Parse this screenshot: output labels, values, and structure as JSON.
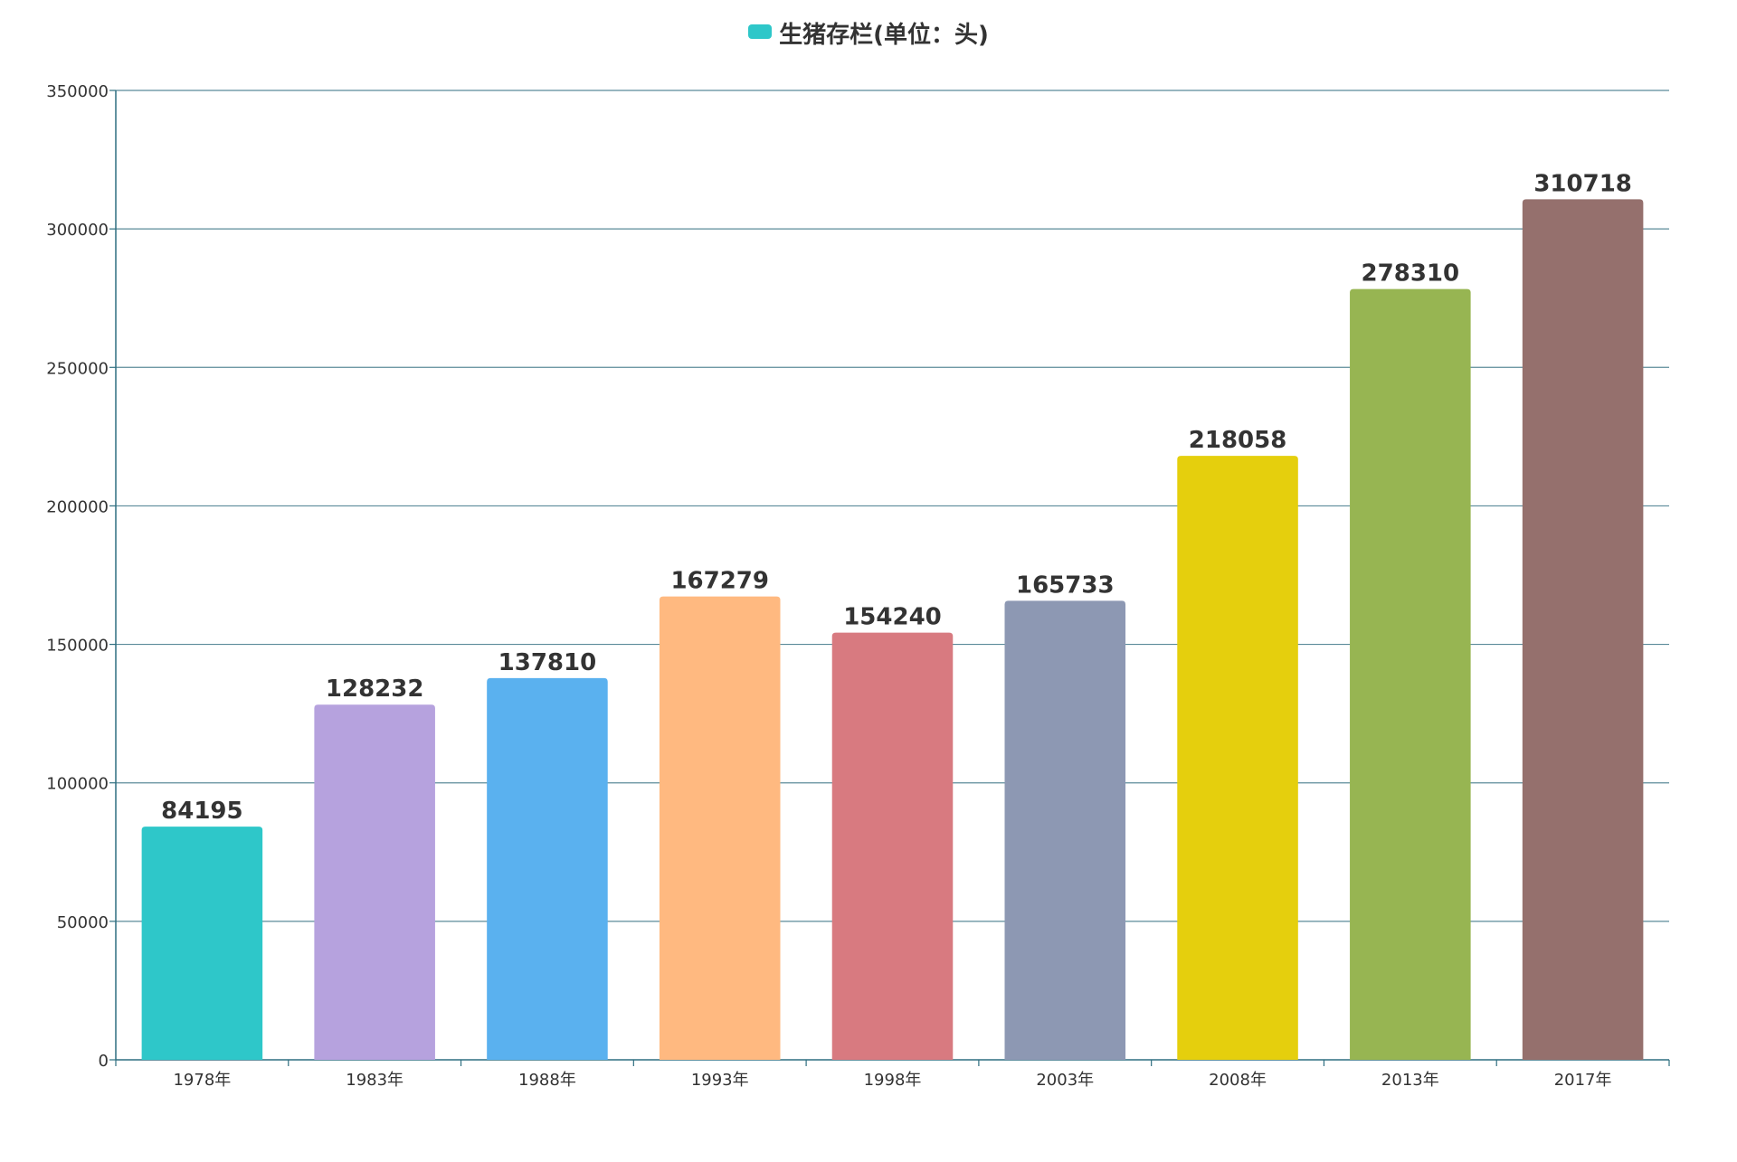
{
  "chart_data": {
    "type": "bar",
    "legend": {
      "label": "生猪存栏(单位：头)",
      "color": "#2ec7c9",
      "position": "top-center"
    },
    "categories": [
      "1978年",
      "1983年",
      "1988年",
      "1993年",
      "1998年",
      "2003年",
      "2008年",
      "2013年",
      "2017年"
    ],
    "series": [
      {
        "name": "生猪存栏(单位：头)",
        "values": [
          84195,
          128232,
          137810,
          167279,
          154240,
          165733,
          218058,
          278310,
          310718
        ]
      }
    ],
    "bar_colors": [
      "#2ec7c9",
      "#b6a2de",
      "#5ab1ef",
      "#ffb980",
      "#d87a80",
      "#8d98b3",
      "#e5cf0d",
      "#97b552",
      "#95706d"
    ],
    "y_ticks": [
      "0",
      "50000",
      "100000",
      "150000",
      "200000",
      "250000",
      "300000",
      "350000"
    ],
    "ylim": [
      0,
      350000
    ],
    "grid": true,
    "data_labels": true
  }
}
